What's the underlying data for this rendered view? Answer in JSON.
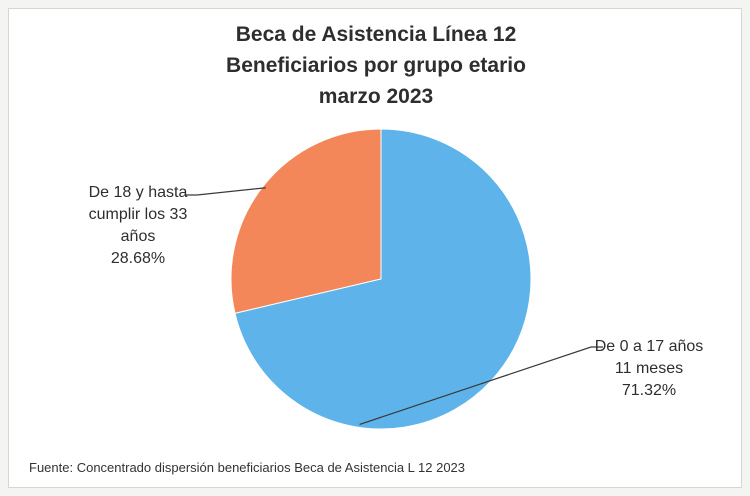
{
  "chart_data": {
    "type": "pie",
    "title": [
      "Beca de Asistencia Línea 12",
      "Beneficiarios por grupo etario",
      "marzo 2023"
    ],
    "slices": [
      {
        "label_lines": [
          "De 18 y hasta",
          "cumplir los 33",
          "años"
        ],
        "value": 28.68,
        "value_label": "28.68%",
        "color": "#f4875a"
      },
      {
        "label_lines": [
          "De 0 a 17 años",
          "11 meses"
        ],
        "value": 71.32,
        "value_label": "71.32%",
        "color": "#5db3ea"
      }
    ],
    "source": "Fuente: Concentrado dispersión beneficiarios Beca de Asistencia L 12 2023"
  }
}
